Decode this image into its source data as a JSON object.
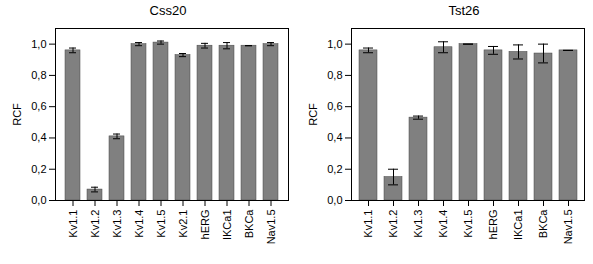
{
  "chart_data": [
    {
      "type": "bar",
      "title": "Css20",
      "y_label": "RCF",
      "color": "#808080",
      "categories": [
        "Kv1.1",
        "Kv1.2",
        "Kv1.3",
        "Kv1.4",
        "Kv1.5",
        "Kv2.1",
        "hERG",
        "IKCa1",
        "BKCa",
        "Nav1.5"
      ],
      "values": [
        0.96,
        0.07,
        0.41,
        1.0,
        1.01,
        0.93,
        0.99,
        0.99,
        0.99,
        1.0
      ],
      "errors": [
        0.015,
        0.015,
        0.015,
        0.01,
        0.01,
        0.01,
        0.015,
        0.02,
        0.0,
        0.01
      ],
      "ylim": [
        0,
        1.1
      ],
      "yticks": [
        {
          "value": 0,
          "label": "0,0"
        },
        {
          "value": 0.2,
          "label": "0,2"
        },
        {
          "value": 0.4,
          "label": "0,4"
        },
        {
          "value": 0.6,
          "label": "0,6"
        },
        {
          "value": 0.8,
          "label": "0,8"
        },
        {
          "value": 1.0,
          "label": "1,0"
        }
      ]
    },
    {
      "type": "bar",
      "title": "Tst26",
      "y_label": "RCF",
      "color": "#808080",
      "categories": [
        "Kv1.1",
        "Kv1.2",
        "Kv1.3",
        "Kv1.4",
        "Kv1.5",
        "hERG",
        "IKCa1",
        "BKCa",
        "Nav1.5"
      ],
      "values": [
        0.96,
        0.15,
        0.53,
        0.98,
        1.0,
        0.96,
        0.95,
        0.94,
        0.96
      ],
      "errors": [
        0.015,
        0.05,
        0.01,
        0.035,
        0.0,
        0.025,
        0.045,
        0.06,
        0.0
      ],
      "ylim": [
        0,
        1.1
      ],
      "yticks": [
        {
          "value": 0,
          "label": "0,0"
        },
        {
          "value": 0.2,
          "label": "0,2"
        },
        {
          "value": 0.4,
          "label": "0,4"
        },
        {
          "value": 0.6,
          "label": "0,6"
        },
        {
          "value": 0.8,
          "label": "0,8"
        },
        {
          "value": 1.0,
          "label": "1,0"
        }
      ]
    }
  ]
}
